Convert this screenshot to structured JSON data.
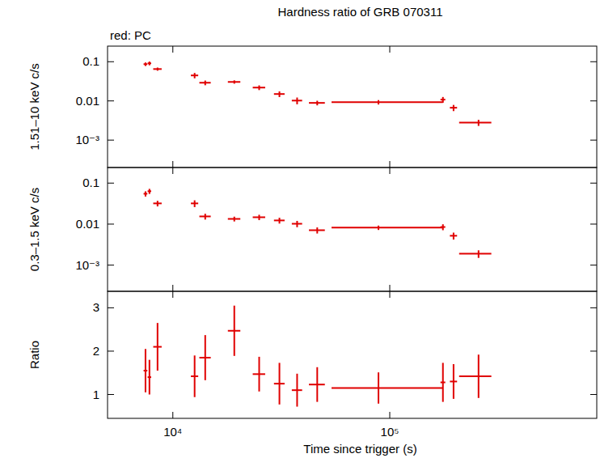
{
  "chart_data": [
    {
      "type": "scatter",
      "title": "Hardness ratio of GRB 070311",
      "y_label": "1.51–10 keV c/s",
      "log": true,
      "legend": "top-left",
      "tick_labels": "y",
      "marker": "cross",
      "xlim": [
        5000,
        900000
      ],
      "xticks": [
        {
          "value": 10000,
          "label": "10⁴"
        },
        {
          "value": 100000,
          "label": "10⁵"
        }
      ],
      "ylim": [
        0.0002,
        0.25
      ],
      "yticks": [
        {
          "value": 0.001,
          "label": "10⁻³"
        },
        0.01,
        0.1
      ],
      "x": [
        7480,
        7800,
        8500,
        12600,
        14100,
        19200,
        25000,
        31000,
        37400,
        46300,
        88700,
        175800,
        196800,
        256600
      ],
      "x_errors": [
        [
          150,
          150
        ],
        [
          150,
          150
        ],
        [
          380,
          380
        ],
        [
          490,
          490
        ],
        [
          850,
          850
        ],
        [
          1270,
          1270
        ],
        [
          1650,
          1650
        ],
        [
          1750,
          1750
        ],
        [
          2050,
          2050
        ],
        [
          3900,
          3900
        ],
        [
          34800,
          87100
        ],
        [
          4500,
          4500
        ],
        [
          7500,
          7500
        ],
        [
          47800,
          37300
        ]
      ],
      "series": [
        {
          "name": "red: PC",
          "color": "#e00000",
          "values": [
            0.0867,
            0.091,
            0.065,
            0.0447,
            0.0291,
            0.0305,
            0.0219,
            0.015,
            0.0102,
            0.0089,
            0.0093,
            0.0108,
            0.0067,
            0.0028
          ],
          "errors": [
            0.009,
            0.01,
            0.006,
            0.007,
            0.004,
            0.003,
            0.003,
            0.0025,
            0.002,
            0.0012,
            0.0012,
            0.0018,
            0.0012,
            0.0005
          ]
        }
      ]
    },
    {
      "type": "scatter",
      "y_label": "0.3–1.5 keV c/s",
      "log": true,
      "tick_labels": "y",
      "marker": "cross",
      "xlim": [
        5000,
        900000
      ],
      "xticks": [
        {
          "value": 10000,
          "label": "10⁴"
        },
        {
          "value": 100000,
          "label": "10⁵"
        }
      ],
      "ylim": [
        0.00023,
        0.24
      ],
      "yticks": [
        {
          "value": 0.001,
          "label": "10⁻³"
        },
        0.01,
        0.1
      ],
      "x": [
        7480,
        7800,
        8500,
        12600,
        14100,
        19200,
        25000,
        31000,
        37400,
        46300,
        88700,
        175800,
        196800,
        256600
      ],
      "x_errors": [
        [
          150,
          150
        ],
        [
          150,
          150
        ],
        [
          380,
          380
        ],
        [
          490,
          490
        ],
        [
          850,
          850
        ],
        [
          1270,
          1270
        ],
        [
          1650,
          1650
        ],
        [
          1750,
          1750
        ],
        [
          2050,
          2050
        ],
        [
          3900,
          3900
        ],
        [
          34800,
          87100
        ],
        [
          4500,
          4500
        ],
        [
          7500,
          7500
        ],
        [
          47800,
          37300
        ]
      ],
      "series": [
        {
          "color": "#e00000",
          "values": [
            0.055,
            0.0634,
            0.032,
            0.032,
            0.0154,
            0.0134,
            0.0147,
            0.0123,
            0.0102,
            0.0071,
            0.0082,
            0.0085,
            0.0052,
            0.0019
          ],
          "errors": [
            0.008,
            0.009,
            0.005,
            0.006,
            0.0025,
            0.0018,
            0.0022,
            0.002,
            0.0018,
            0.0012,
            0.001,
            0.0014,
            0.001,
            0.0004
          ]
        }
      ]
    },
    {
      "type": "scatter",
      "y_label": "Ratio",
      "x_label": "Time since trigger (s)",
      "log": "x",
      "marker": "cross",
      "xlim": [
        5000,
        900000
      ],
      "xticks": [
        {
          "value": 10000,
          "label": "10⁴"
        },
        {
          "value": 100000,
          "label": "10⁵"
        }
      ],
      "ylim": [
        0.45,
        3.38
      ],
      "yticks": [
        1,
        2,
        3
      ],
      "x": [
        7480,
        7800,
        8500,
        12600,
        14100,
        19200,
        25000,
        31000,
        37400,
        46300,
        88700,
        175800,
        196800,
        256600
      ],
      "x_errors": [
        [
          150,
          150
        ],
        [
          150,
          150
        ],
        [
          380,
          380
        ],
        [
          490,
          490
        ],
        [
          850,
          850
        ],
        [
          1270,
          1270
        ],
        [
          1650,
          1650
        ],
        [
          1750,
          1750
        ],
        [
          2050,
          2050
        ],
        [
          3900,
          3900
        ],
        [
          34800,
          87100
        ],
        [
          4500,
          4500
        ],
        [
          7500,
          7500
        ],
        [
          47800,
          37300
        ]
      ],
      "series": [
        {
          "color": "#e00000",
          "values": [
            1.55,
            1.4,
            2.1,
            1.42,
            1.85,
            2.47,
            1.47,
            1.25,
            1.1,
            1.23,
            1.15,
            1.28,
            1.3,
            1.42
          ],
          "errors": [
            0.5,
            0.4,
            0.55,
            0.48,
            0.52,
            0.58,
            0.4,
            0.48,
            0.38,
            0.4,
            0.36,
            0.45,
            0.4,
            0.5
          ]
        }
      ]
    }
  ]
}
